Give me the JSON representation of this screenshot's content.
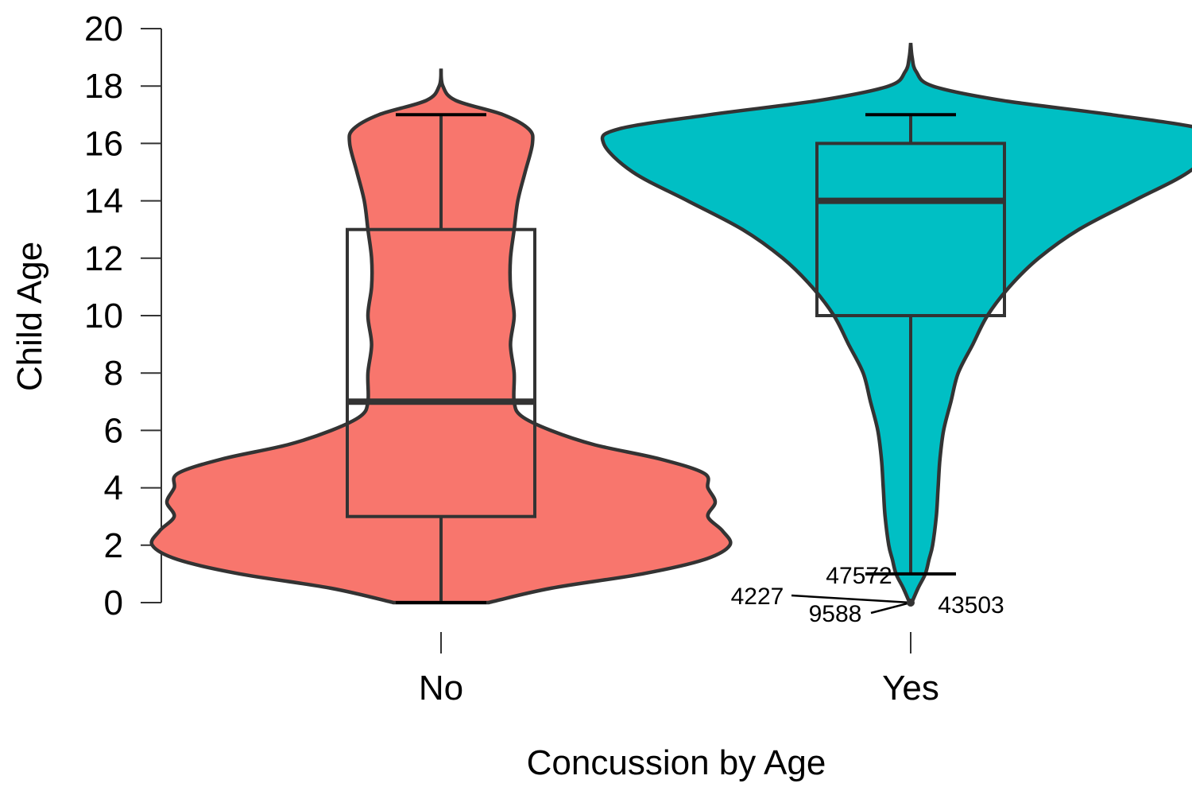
{
  "chart_data": {
    "type": "violin",
    "xlabel": "Concussion by Age",
    "ylabel": "Child Age",
    "ylim": [
      0,
      20
    ],
    "yticks": [
      0,
      2,
      4,
      6,
      8,
      10,
      12,
      14,
      16,
      18,
      20
    ],
    "categories": [
      "No",
      "Yes"
    ],
    "groups": [
      {
        "category": "No",
        "color": "#F8766D",
        "box": {
          "q1": 3,
          "median": 7,
          "q3": 13,
          "whisker_low": 0,
          "whisker_high": 17
        },
        "density_half_width": [
          [
            0,
            0.13
          ],
          [
            0.5,
            0.3
          ],
          [
            1,
            0.55
          ],
          [
            1.5,
            0.72
          ],
          [
            2,
            0.79
          ],
          [
            2.5,
            0.77
          ],
          [
            3,
            0.73
          ],
          [
            3.5,
            0.75
          ],
          [
            4,
            0.73
          ],
          [
            4.5,
            0.72
          ],
          [
            5,
            0.6
          ],
          [
            5.5,
            0.42
          ],
          [
            6,
            0.3
          ],
          [
            6.5,
            0.22
          ],
          [
            7,
            0.2
          ],
          [
            8,
            0.2
          ],
          [
            9,
            0.19
          ],
          [
            10,
            0.2
          ],
          [
            11,
            0.19
          ],
          [
            12,
            0.19
          ],
          [
            13,
            0.2
          ],
          [
            14,
            0.21
          ],
          [
            15,
            0.23
          ],
          [
            16,
            0.25
          ],
          [
            16.5,
            0.24
          ],
          [
            17,
            0.17
          ],
          [
            17.5,
            0.04
          ],
          [
            18,
            0.005
          ],
          [
            18.6,
            0
          ]
        ],
        "outliers": []
      },
      {
        "category": "Yes",
        "color": "#00BFC4",
        "box": {
          "q1": 10,
          "median": 14,
          "q3": 16,
          "whisker_low": 1,
          "whisker_high": 17
        },
        "density_half_width": [
          [
            0,
            0.003
          ],
          [
            0.5,
            0.02
          ],
          [
            1,
            0.04
          ],
          [
            1.5,
            0.05
          ],
          [
            2,
            0.06
          ],
          [
            3,
            0.07
          ],
          [
            4,
            0.075
          ],
          [
            5,
            0.08
          ],
          [
            6,
            0.09
          ],
          [
            7,
            0.11
          ],
          [
            8,
            0.13
          ],
          [
            9,
            0.17
          ],
          [
            10,
            0.21
          ],
          [
            11,
            0.27
          ],
          [
            12,
            0.35
          ],
          [
            13,
            0.46
          ],
          [
            14,
            0.61
          ],
          [
            15,
            0.76
          ],
          [
            16,
            0.84
          ],
          [
            16.5,
            0.8
          ],
          [
            17,
            0.55
          ],
          [
            17.5,
            0.25
          ],
          [
            18,
            0.06
          ],
          [
            18.5,
            0.015
          ],
          [
            19,
            0.004
          ],
          [
            19.5,
            0
          ]
        ],
        "outliers": [
          {
            "id": "47572",
            "value": 1
          },
          {
            "id": "4227",
            "value": 0
          },
          {
            "id": "9588",
            "value": 0
          },
          {
            "id": "43503",
            "value": 0
          }
        ]
      }
    ]
  }
}
